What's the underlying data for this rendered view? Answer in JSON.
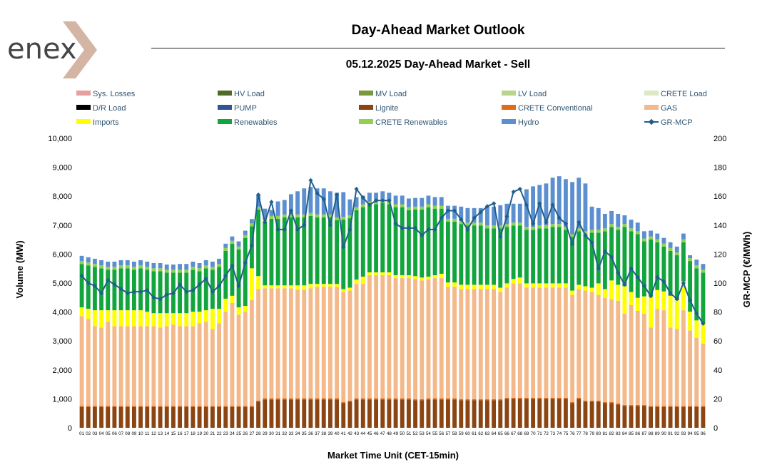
{
  "header": {
    "brand": "enex",
    "title": "Day-Ahead Market Outlook",
    "subtitle": "05.12.2025  Day-Ahead Market - Sell"
  },
  "chart_data": {
    "type": "stacked-bar+line",
    "xlabel": "Market Time Unit (CET-15min)",
    "ylabel": "Volume (MW)",
    "y2label": "GR-MCP (€/MWh)",
    "ylim": [
      0,
      10000
    ],
    "y2lim": [
      0,
      200
    ],
    "yticks": [
      "0",
      "1,000",
      "2,000",
      "3,000",
      "4,000",
      "5,000",
      "6,000",
      "7,000",
      "8,000",
      "9,000",
      "10,000"
    ],
    "y2ticks": [
      "0",
      "20",
      "40",
      "60",
      "80",
      "100",
      "120",
      "140",
      "160",
      "180",
      "200"
    ],
    "grid": false,
    "legend_position": "top",
    "categories": [
      "01",
      "02",
      "03",
      "04",
      "05",
      "06",
      "07",
      "08",
      "09",
      "10",
      "11",
      "12",
      "13",
      "14",
      "15",
      "16",
      "17",
      "18",
      "19",
      "20",
      "21",
      "22",
      "23",
      "24",
      "25",
      "26",
      "27",
      "28",
      "29",
      "30",
      "31",
      "32",
      "33",
      "34",
      "35",
      "36",
      "37",
      "38",
      "39",
      "40",
      "41",
      "42",
      "43",
      "44",
      "45",
      "46",
      "47",
      "48",
      "49",
      "50",
      "51",
      "52",
      "53",
      "54",
      "55",
      "56",
      "57",
      "58",
      "59",
      "60",
      "61",
      "62",
      "63",
      "64",
      "65",
      "66",
      "67",
      "68",
      "69",
      "70",
      "71",
      "72",
      "73",
      "74",
      "75",
      "76",
      "77",
      "78",
      "79",
      "80",
      "81",
      "82",
      "83",
      "84",
      "85",
      "86",
      "87",
      "88",
      "89",
      "90",
      "91",
      "92",
      "93",
      "94",
      "95",
      "96"
    ],
    "legend": [
      {
        "name": "Sys. Losses",
        "color": "#e6a0a0",
        "kind": "bar"
      },
      {
        "name": "HV Load",
        "color": "#4e6b2a",
        "kind": "bar"
      },
      {
        "name": "MV Load",
        "color": "#7a9a3a",
        "kind": "bar"
      },
      {
        "name": "LV Load",
        "color": "#b9d48c",
        "kind": "bar"
      },
      {
        "name": "CRETE Load",
        "color": "#dce9c7",
        "kind": "bar"
      },
      {
        "name": "D/R Load",
        "color": "#000000",
        "kind": "bar"
      },
      {
        "name": "PUMP",
        "color": "#2f5597",
        "kind": "bar"
      },
      {
        "name": "Lignite",
        "color": "#8b4513",
        "kind": "bar"
      },
      {
        "name": "CRETE Conventional",
        "color": "#e06c1a",
        "kind": "bar"
      },
      {
        "name": "GAS",
        "color": "#f4b98a",
        "kind": "bar"
      },
      {
        "name": "Imports",
        "color": "#ffff00",
        "kind": "bar"
      },
      {
        "name": "Renewables",
        "color": "#12a53e",
        "kind": "bar"
      },
      {
        "name": "CRETE Renewables",
        "color": "#92d050",
        "kind": "bar"
      },
      {
        "name": "Hydro",
        "color": "#5b8fd0",
        "kind": "bar"
      },
      {
        "name": "GR-MCP",
        "color": "#1f5f8b",
        "kind": "line"
      }
    ],
    "series": [
      {
        "name": "Lignite",
        "values": [
          720,
          720,
          720,
          720,
          720,
          720,
          720,
          720,
          720,
          720,
          720,
          720,
          720,
          720,
          720,
          720,
          720,
          720,
          720,
          720,
          720,
          720,
          720,
          720,
          720,
          720,
          720,
          900,
          980,
          980,
          980,
          980,
          980,
          980,
          980,
          980,
          980,
          980,
          980,
          980,
          850,
          900,
          980,
          980,
          980,
          980,
          980,
          980,
          980,
          980,
          980,
          950,
          950,
          980,
          980,
          980,
          980,
          980,
          950,
          950,
          950,
          950,
          950,
          950,
          950,
          1000,
          1000,
          1000,
          1000,
          1000,
          1000,
          1000,
          1000,
          1000,
          1000,
          850,
          1000,
          900,
          900,
          900,
          850,
          850,
          800,
          750,
          750,
          750,
          750,
          720,
          720,
          720,
          720,
          720,
          720,
          720,
          720,
          720
        ]
      },
      {
        "name": "CRETE Conventional",
        "values": [
          40,
          40,
          40,
          40,
          40,
          40,
          40,
          40,
          40,
          40,
          40,
          40,
          40,
          40,
          40,
          40,
          40,
          40,
          40,
          40,
          40,
          40,
          40,
          40,
          40,
          40,
          40,
          40,
          40,
          40,
          40,
          40,
          40,
          40,
          40,
          40,
          40,
          40,
          40,
          40,
          40,
          40,
          40,
          40,
          40,
          40,
          40,
          40,
          40,
          40,
          40,
          40,
          40,
          40,
          40,
          40,
          40,
          40,
          40,
          40,
          40,
          40,
          40,
          40,
          40,
          40,
          40,
          40,
          40,
          40,
          40,
          40,
          40,
          40,
          40,
          40,
          40,
          40,
          40,
          40,
          40,
          40,
          40,
          40,
          40,
          40,
          40,
          40,
          40,
          40,
          40,
          40,
          40,
          40,
          40,
          40
        ]
      },
      {
        "name": "GAS",
        "values": [
          3100,
          3000,
          2750,
          2700,
          2900,
          2750,
          2750,
          2750,
          2750,
          2750,
          2750,
          2750,
          2700,
          2750,
          2800,
          2750,
          2750,
          2750,
          2850,
          2900,
          2650,
          2850,
          3250,
          3550,
          3150,
          3250,
          3650,
          3850,
          3800,
          3800,
          3800,
          3800,
          3800,
          3750,
          3750,
          3800,
          3850,
          3850,
          3850,
          3850,
          3800,
          3800,
          3950,
          3950,
          4250,
          4250,
          4250,
          4250,
          4150,
          4150,
          4150,
          4150,
          4100,
          4100,
          4150,
          4150,
          3850,
          3850,
          3800,
          3800,
          3800,
          3800,
          3800,
          3800,
          3700,
          3800,
          3950,
          3950,
          3800,
          3800,
          3800,
          3800,
          3800,
          3800,
          3800,
          3700,
          3750,
          3800,
          3750,
          3650,
          3600,
          3550,
          3550,
          3150,
          3450,
          3250,
          3150,
          2700,
          3350,
          3300,
          2700,
          2650,
          3300,
          2600,
          2350,
          2150
        ]
      },
      {
        "name": "Imports",
        "values": [
          300,
          350,
          550,
          600,
          400,
          550,
          550,
          550,
          550,
          550,
          500,
          450,
          500,
          450,
          400,
          450,
          450,
          500,
          400,
          400,
          700,
          500,
          450,
          250,
          250,
          200,
          1100,
          450,
          100,
          100,
          100,
          100,
          100,
          150,
          150,
          150,
          100,
          100,
          100,
          100,
          100,
          100,
          150,
          250,
          100,
          100,
          100,
          100,
          100,
          100,
          100,
          100,
          100,
          100,
          100,
          150,
          150,
          150,
          150,
          150,
          150,
          150,
          150,
          150,
          150,
          150,
          150,
          200,
          150,
          150,
          150,
          150,
          150,
          150,
          150,
          150,
          150,
          150,
          150,
          400,
          300,
          650,
          550,
          950,
          450,
          450,
          600,
          1100,
          650,
          650,
          1100,
          1000,
          1000,
          650,
          600,
          700
        ]
      },
      {
        "name": "Renewables",
        "values": [
          1500,
          1500,
          1500,
          1450,
          1400,
          1400,
          1450,
          1450,
          1400,
          1450,
          1450,
          1450,
          1450,
          1400,
          1400,
          1400,
          1400,
          1450,
          1400,
          1450,
          1350,
          1450,
          1650,
          1800,
          2000,
          2350,
          1450,
          2300,
          2200,
          2300,
          2300,
          2350,
          2350,
          2350,
          2350,
          2350,
          2300,
          2300,
          2300,
          2200,
          2400,
          2400,
          2400,
          2400,
          2350,
          2350,
          2400,
          2350,
          2350,
          2350,
          2250,
          2300,
          2350,
          2400,
          2300,
          2250,
          2100,
          2100,
          2100,
          2050,
          2050,
          2050,
          1950,
          1950,
          2050,
          1950,
          1850,
          1800,
          1850,
          1850,
          1900,
          1900,
          1950,
          1950,
          1850,
          1850,
          1850,
          1800,
          1900,
          1750,
          2000,
          1850,
          1900,
          2050,
          2100,
          2200,
          1900,
          1950,
          1650,
          1550,
          1550,
          1550,
          1350,
          1750,
          1800,
          1750
        ]
      },
      {
        "name": "CRETE Renewables",
        "values": [
          100,
          100,
          100,
          100,
          100,
          100,
          100,
          100,
          100,
          100,
          100,
          100,
          100,
          100,
          100,
          100,
          100,
          100,
          100,
          100,
          100,
          100,
          100,
          100,
          100,
          100,
          100,
          100,
          100,
          100,
          100,
          100,
          100,
          100,
          100,
          100,
          100,
          100,
          100,
          100,
          100,
          100,
          100,
          100,
          100,
          100,
          100,
          100,
          100,
          100,
          100,
          100,
          100,
          100,
          100,
          100,
          100,
          100,
          100,
          100,
          100,
          100,
          100,
          100,
          100,
          100,
          100,
          100,
          100,
          100,
          100,
          100,
          100,
          100,
          100,
          100,
          100,
          100,
          100,
          100,
          100,
          100,
          100,
          100,
          100,
          100,
          100,
          100,
          100,
          100,
          100,
          100,
          100,
          100,
          100,
          100
        ]
      },
      {
        "name": "Hydro",
        "values": [
          180,
          180,
          180,
          180,
          180,
          180,
          180,
          180,
          180,
          180,
          180,
          180,
          180,
          180,
          180,
          200,
          200,
          180,
          180,
          180,
          180,
          180,
          150,
          150,
          180,
          150,
          150,
          400,
          350,
          200,
          500,
          500,
          700,
          800,
          900,
          900,
          900,
          900,
          800,
          850,
          850,
          550,
          350,
          300,
          300,
          300,
          300,
          300,
          300,
          300,
          300,
          300,
          300,
          300,
          300,
          300,
          450,
          450,
          500,
          500,
          500,
          500,
          650,
          650,
          700,
          700,
          650,
          650,
          1300,
          1400,
          1400,
          1450,
          1600,
          1650,
          1650,
          1800,
          1750,
          1650,
          800,
          750,
          500,
          450,
          450,
          300,
          300,
          300,
          250,
          200,
          200,
          200,
          200,
          200,
          200,
          100,
          200,
          200
        ]
      }
    ],
    "line": {
      "name": "GR-MCP",
      "values": [
        105,
        100,
        98,
        93,
        102,
        99,
        96,
        93,
        94,
        94,
        95,
        90,
        89,
        92,
        93,
        99,
        94,
        95,
        99,
        103,
        94,
        98,
        105,
        112,
        98,
        114,
        126,
        161,
        142,
        156,
        137,
        137,
        150,
        137,
        140,
        171,
        162,
        158,
        140,
        161,
        125,
        137,
        165,
        159,
        154,
        157,
        157,
        157,
        141,
        138,
        138,
        138,
        133,
        137,
        137,
        145,
        150,
        150,
        144,
        137,
        145,
        149,
        153,
        155,
        132,
        146,
        163,
        165,
        154,
        141,
        155,
        142,
        154,
        145,
        141,
        127,
        142,
        133,
        128,
        110,
        122,
        118,
        107,
        99,
        110,
        104,
        98,
        91,
        104,
        101,
        93,
        89,
        100,
        88,
        79,
        72
      ]
    }
  }
}
